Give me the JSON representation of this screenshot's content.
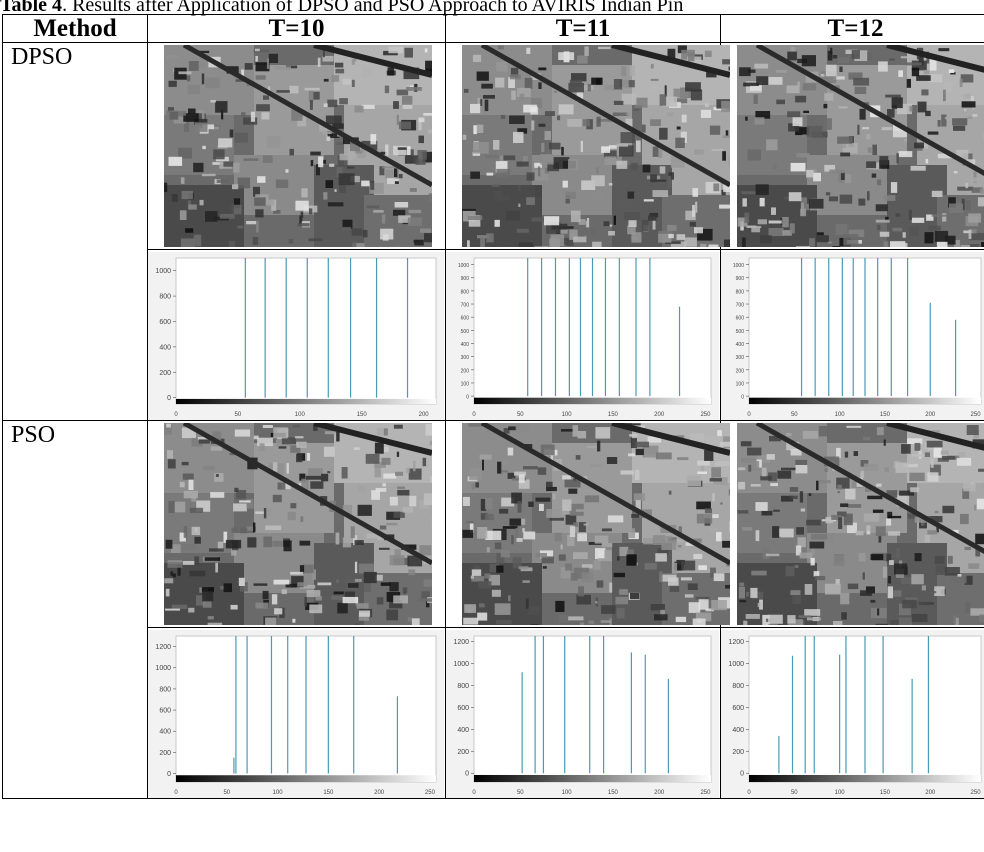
{
  "caption": {
    "label": "Table 4",
    "text": ". Results after Application of DPSO and PSO Approach to AVIRIS Indian Pin"
  },
  "table": {
    "headers": [
      "Method",
      "T=10",
      "T=11",
      "T=12"
    ],
    "rows": [
      {
        "method": "DPSO"
      },
      {
        "method": "PSO"
      }
    ]
  },
  "chart_data": [
    {
      "type": "bar",
      "panel": "DPSO T=10",
      "xlim": [
        0,
        210
      ],
      "ylim": [
        -50,
        1100
      ],
      "xticks": [
        0,
        50,
        100,
        150,
        200
      ],
      "yticks": [
        0,
        200,
        400,
        600,
        800,
        1000
      ],
      "x": [
        56,
        72,
        89,
        106,
        123,
        141,
        162,
        187
      ],
      "values": [
        1100,
        1100,
        1100,
        1100,
        1100,
        1100,
        1100,
        1100
      ]
    },
    {
      "type": "bar",
      "panel": "DPSO T=11",
      "xlim": [
        0,
        256
      ],
      "ylim": [
        -60,
        1050
      ],
      "xticks": [
        0,
        50,
        100,
        150,
        200,
        250
      ],
      "yticks": [
        0,
        100,
        200,
        300,
        400,
        500,
        600,
        700,
        800,
        900,
        1000
      ],
      "x": [
        58,
        73,
        88,
        103,
        115,
        128,
        142,
        157,
        175,
        190,
        222
      ],
      "values": [
        1050,
        1050,
        1050,
        1050,
        1050,
        1050,
        1050,
        1050,
        1050,
        1050,
        680
      ]
    },
    {
      "type": "bar",
      "panel": "DPSO T=12",
      "xlim": [
        0,
        256
      ],
      "ylim": [
        -60,
        1050
      ],
      "xticks": [
        0,
        50,
        100,
        150,
        200,
        250
      ],
      "yticks": [
        0,
        100,
        200,
        300,
        400,
        500,
        600,
        700,
        800,
        900,
        1000
      ],
      "x": [
        58,
        73,
        88,
        103,
        115,
        128,
        142,
        157,
        175,
        200,
        228
      ],
      "values": [
        1050,
        1050,
        1050,
        1050,
        1050,
        1050,
        1050,
        1050,
        1050,
        710,
        580
      ]
    },
    {
      "type": "bar",
      "panel": "PSO T=10",
      "xlim": [
        0,
        256
      ],
      "ylim": [
        -80,
        1300
      ],
      "xticks": [
        0,
        50,
        100,
        150,
        200,
        250
      ],
      "yticks": [
        0,
        200,
        400,
        600,
        800,
        1000,
        1200
      ],
      "x": [
        57,
        59,
        70,
        94,
        110,
        128,
        150,
        175,
        218
      ],
      "values": [
        150,
        1300,
        1300,
        1300,
        1300,
        1300,
        1300,
        1300,
        730
      ]
    },
    {
      "type": "bar",
      "panel": "PSO T=11",
      "xlim": [
        0,
        256
      ],
      "ylim": [
        -80,
        1250
      ],
      "xticks": [
        0,
        50,
        100,
        150,
        200,
        250
      ],
      "yticks": [
        0,
        200,
        400,
        600,
        800,
        1000,
        1200
      ],
      "x": [
        52,
        66,
        75,
        98,
        125,
        140,
        170,
        185,
        210
      ],
      "values": [
        920,
        1250,
        1250,
        1250,
        1250,
        1250,
        1100,
        1080,
        860
      ]
    },
    {
      "type": "bar",
      "panel": "PSO T=12",
      "xlim": [
        0,
        256
      ],
      "ylim": [
        -80,
        1250
      ],
      "xticks": [
        0,
        50,
        100,
        150,
        200,
        250
      ],
      "yticks": [
        0,
        200,
        400,
        600,
        800,
        1000,
        1200
      ],
      "x": [
        33,
        48,
        62,
        72,
        100,
        107,
        128,
        148,
        180,
        198
      ],
      "values": [
        340,
        1070,
        1250,
        1250,
        1080,
        1250,
        1250,
        1250,
        860,
        1250
      ]
    }
  ]
}
